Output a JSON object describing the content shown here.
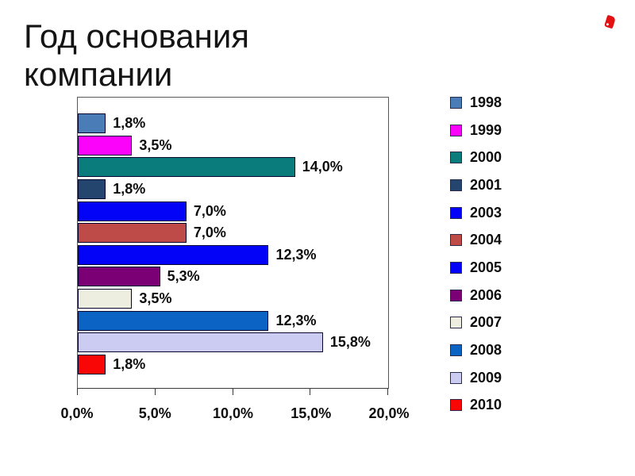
{
  "title": "Год основания компании",
  "logo_color": "#e31111",
  "chart_data": {
    "type": "bar",
    "orientation": "horizontal",
    "title": "Год основания компании",
    "xlabel": "",
    "ylabel": "",
    "xlim": [
      0,
      20
    ],
    "x_ticks_values": [
      0,
      5,
      10,
      15,
      20
    ],
    "x_tick_labels": [
      "0,0%",
      "5,0%",
      "10,0%",
      "15,0%",
      "20,0%"
    ],
    "grid": false,
    "legend_position": "right",
    "categories": [
      "1998",
      "1999",
      "2000",
      "2001",
      "2003",
      "2004",
      "2005",
      "2006",
      "2007",
      "2008",
      "2009",
      "2010"
    ],
    "values": [
      1.8,
      3.5,
      14.0,
      1.8,
      7.0,
      7.0,
      12.3,
      5.3,
      3.5,
      12.3,
      15.8,
      1.8
    ],
    "value_labels": [
      "1,8%",
      "3,5%",
      "14,0%",
      "1,8%",
      "7,0%",
      "7,0%",
      "12,3%",
      "5,3%",
      "3,5%",
      "12,3%",
      "15,8%",
      "1,8%"
    ],
    "colors": [
      "#4A7CB8",
      "#FB02FB",
      "#0B7C7C",
      "#24466E",
      "#0303F8",
      "#BE4B47",
      "#0303F8",
      "#7C0075",
      "#EDEDE0",
      "#0B64C4",
      "#CCCCF2",
      "#F90606"
    ]
  }
}
